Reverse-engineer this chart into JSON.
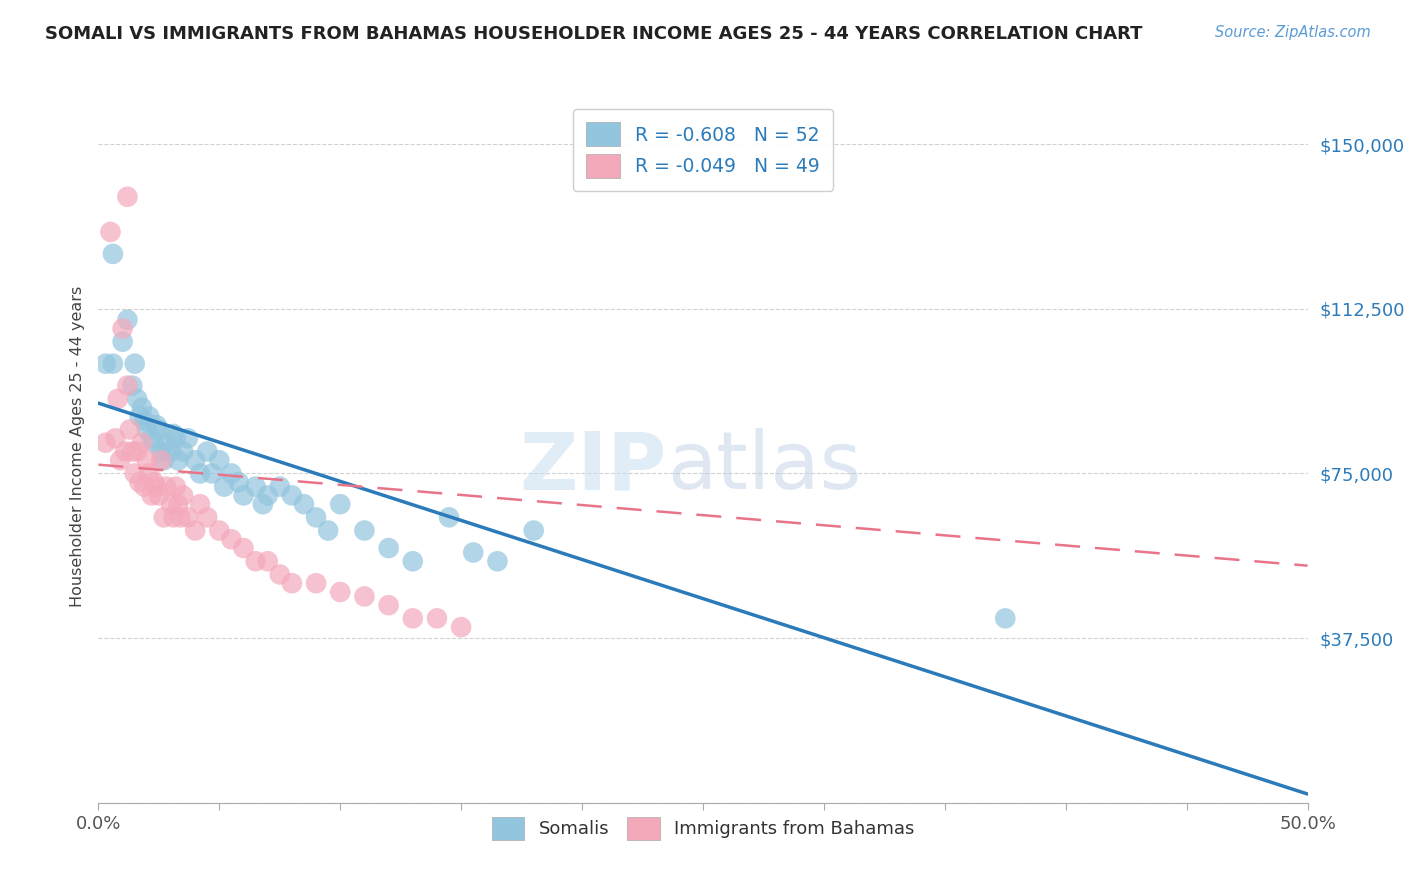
{
  "title": "SOMALI VS IMMIGRANTS FROM BAHAMAS HOUSEHOLDER INCOME AGES 25 - 44 YEARS CORRELATION CHART",
  "source": "Source: ZipAtlas.com",
  "ylabel": "Householder Income Ages 25 - 44 years",
  "xlim": [
    0.0,
    0.5
  ],
  "ylim": [
    0,
    162500
  ],
  "yticks": [
    0,
    37500,
    75000,
    112500,
    150000
  ],
  "ytick_labels": [
    "",
    "$37,500",
    "$75,000",
    "$112,500",
    "$150,000"
  ],
  "xtick_labels_ends": [
    "0.0%",
    "50.0%"
  ],
  "xticks_ends": [
    0.0,
    0.5
  ],
  "blue_color": "#92c5de",
  "pink_color": "#f4a9bb",
  "blue_line_color": "#2b7bba",
  "pink_line_color": "#e8748a",
  "legend_blue_label": "R = -0.608   N = 52",
  "legend_pink_label": "R = -0.049   N = 49",
  "legend_label1": "Somalis",
  "legend_label2": "Immigrants from Bahamas",
  "watermark_zip": "ZIP",
  "watermark_atlas": "atlas",
  "blue_line_x0": 0.0,
  "blue_line_y0": 91000,
  "blue_line_x1": 0.5,
  "blue_line_y1": 2000,
  "pink_line_x0": 0.0,
  "pink_line_y0": 77000,
  "pink_line_x1": 0.5,
  "pink_line_y1": 54000,
  "blue_scatter_x": [
    0.003,
    0.006,
    0.01,
    0.012,
    0.014,
    0.015,
    0.016,
    0.017,
    0.018,
    0.019,
    0.02,
    0.021,
    0.022,
    0.023,
    0.024,
    0.025,
    0.026,
    0.027,
    0.028,
    0.03,
    0.031,
    0.032,
    0.033,
    0.035,
    0.037,
    0.04,
    0.042,
    0.045,
    0.047,
    0.05,
    0.052,
    0.055,
    0.058,
    0.06,
    0.065,
    0.068,
    0.07,
    0.075,
    0.08,
    0.085,
    0.09,
    0.095,
    0.1,
    0.11,
    0.12,
    0.13,
    0.145,
    0.155,
    0.165,
    0.18,
    0.375,
    0.006
  ],
  "blue_scatter_y": [
    100000,
    125000,
    105000,
    110000,
    95000,
    100000,
    92000,
    88000,
    90000,
    87000,
    85000,
    88000,
    83000,
    82000,
    86000,
    85000,
    80000,
    78000,
    82000,
    80000,
    84000,
    83000,
    78000,
    80000,
    83000,
    78000,
    75000,
    80000,
    75000,
    78000,
    72000,
    75000,
    73000,
    70000,
    72000,
    68000,
    70000,
    72000,
    70000,
    68000,
    65000,
    62000,
    68000,
    62000,
    58000,
    55000,
    65000,
    57000,
    55000,
    62000,
    42000,
    100000
  ],
  "pink_scatter_x": [
    0.003,
    0.005,
    0.007,
    0.008,
    0.009,
    0.01,
    0.011,
    0.012,
    0.013,
    0.014,
    0.015,
    0.016,
    0.017,
    0.018,
    0.019,
    0.02,
    0.021,
    0.022,
    0.023,
    0.024,
    0.025,
    0.026,
    0.027,
    0.028,
    0.03,
    0.031,
    0.032,
    0.033,
    0.034,
    0.035,
    0.037,
    0.04,
    0.042,
    0.045,
    0.05,
    0.055,
    0.06,
    0.065,
    0.07,
    0.075,
    0.08,
    0.09,
    0.1,
    0.11,
    0.12,
    0.13,
    0.14,
    0.15,
    0.012
  ],
  "pink_scatter_y": [
    82000,
    130000,
    83000,
    92000,
    78000,
    108000,
    80000,
    95000,
    85000,
    80000,
    75000,
    80000,
    73000,
    82000,
    72000,
    78000,
    75000,
    70000,
    73000,
    72000,
    70000,
    78000,
    65000,
    72000,
    68000,
    65000,
    72000,
    68000,
    65000,
    70000,
    65000,
    62000,
    68000,
    65000,
    62000,
    60000,
    58000,
    55000,
    55000,
    52000,
    50000,
    50000,
    48000,
    47000,
    45000,
    42000,
    42000,
    40000,
    138000
  ]
}
